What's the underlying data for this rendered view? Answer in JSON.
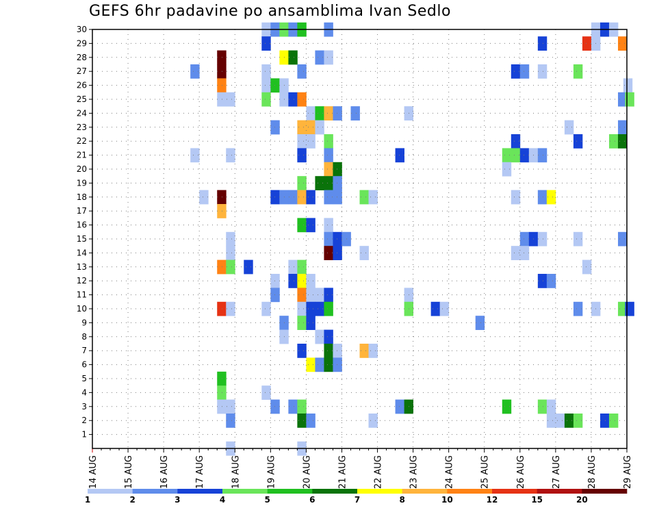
{
  "chart_data": {
    "type": "heatmap",
    "title": "GEFS 6hr padavine po ansamblima Ivan Sedlo",
    "y_ticks": [
      "1",
      "2",
      "3",
      "4",
      "5",
      "6",
      "7",
      "8",
      "9",
      "10",
      "11",
      "12",
      "13",
      "14",
      "15",
      "16",
      "17",
      "18",
      "19",
      "20",
      "21",
      "22",
      "23",
      "24",
      "25",
      "26",
      "27",
      "28",
      "29",
      "30"
    ],
    "y_range": [
      0,
      30
    ],
    "x_ticks": [
      "14 AUG",
      "15 AUG",
      "16 AUG",
      "17 AUG",
      "18 AUG",
      "19 AUG",
      "20 AUG",
      "21 AUG",
      "22 AUG",
      "23 AUG",
      "24 AUG",
      "25 AUG",
      "26 AUG",
      "27 AUG",
      "28 AUG",
      "29 AUG"
    ],
    "x_range_days": [
      0,
      15
    ],
    "time_step_hours": 6,
    "grid": true,
    "colorbar": {
      "labels": [
        "1",
        "2",
        "3",
        "4",
        "5",
        "6",
        "7",
        "8",
        "10",
        "12",
        "15",
        "20"
      ],
      "colors": [
        "#b4c8f4",
        "#5f8ceb",
        "#1642d7",
        "#6ae55a",
        "#20c020",
        "#0a730a",
        "#ffff00",
        "#ffb43c",
        "#ff8214",
        "#e63214",
        "#b01010",
        "#650000"
      ]
    },
    "cells": [
      [
        4.75,
        30,
        "#b4c8f4"
      ],
      [
        5,
        30,
        "#5f8ceb"
      ],
      [
        5.25,
        30,
        "#6ae55a"
      ],
      [
        5.5,
        30,
        "#5f8ceb"
      ],
      [
        5.75,
        30,
        "#20c020"
      ],
      [
        6.5,
        30,
        "#5f8ceb"
      ],
      [
        14,
        30,
        "#b4c8f4"
      ],
      [
        14.25,
        30,
        "#1642d7"
      ],
      [
        14.5,
        30,
        "#b4c8f4"
      ],
      [
        4.75,
        29,
        "#1642d7"
      ],
      [
        12.5,
        29,
        "#1642d7"
      ],
      [
        13.75,
        29,
        "#e63214"
      ],
      [
        14,
        29,
        "#b4c8f4"
      ],
      [
        14.75,
        29,
        "#ff8214"
      ],
      [
        3.5,
        28,
        "#650000"
      ],
      [
        5.25,
        28,
        "#ffff00"
      ],
      [
        5.5,
        28,
        "#0a730a"
      ],
      [
        6.25,
        28,
        "#5f8ceb"
      ],
      [
        6.5,
        28,
        "#b4c8f4"
      ],
      [
        2.75,
        27,
        "#5f8ceb"
      ],
      [
        3.5,
        27,
        "#650000"
      ],
      [
        4.75,
        27,
        "#b4c8f4"
      ],
      [
        5.75,
        27,
        "#5f8ceb"
      ],
      [
        11.75,
        27,
        "#1642d7"
      ],
      [
        12,
        27,
        "#5f8ceb"
      ],
      [
        12.5,
        27,
        "#b4c8f4"
      ],
      [
        13.5,
        27,
        "#6ae55a"
      ],
      [
        3.5,
        26,
        "#ff8214"
      ],
      [
        4.75,
        26,
        "#b4c8f4"
      ],
      [
        5,
        26,
        "#20c020"
      ],
      [
        5.25,
        26,
        "#b4c8f4"
      ],
      [
        14.9,
        26,
        "#b4c8f4"
      ],
      [
        3.5,
        25,
        "#b4c8f4"
      ],
      [
        3.75,
        25,
        "#b4c8f4"
      ],
      [
        4.75,
        25,
        "#6ae55a"
      ],
      [
        5.25,
        25,
        "#b4c8f4"
      ],
      [
        5.5,
        25,
        "#1642d7"
      ],
      [
        5.75,
        25,
        "#ff8214"
      ],
      [
        14.75,
        25,
        "#5f8ceb"
      ],
      [
        14.95,
        25,
        "#6ae55a"
      ],
      [
        6,
        24,
        "#b4c8f4"
      ],
      [
        6.25,
        24,
        "#20c020"
      ],
      [
        6.5,
        24,
        "#ffb43c"
      ],
      [
        6.75,
        24,
        "#5f8ceb"
      ],
      [
        7.25,
        24,
        "#5f8ceb"
      ],
      [
        8.75,
        24,
        "#b4c8f4"
      ],
      [
        5,
        23,
        "#5f8ceb"
      ],
      [
        5.75,
        23,
        "#ffb43c"
      ],
      [
        6,
        23,
        "#ffb43c"
      ],
      [
        6.25,
        23,
        "#b4c8f4"
      ],
      [
        13.25,
        23,
        "#b4c8f4"
      ],
      [
        14.75,
        23,
        "#5f8ceb"
      ],
      [
        5.75,
        22,
        "#b4c8f4"
      ],
      [
        6,
        22,
        "#b4c8f4"
      ],
      [
        6.5,
        22,
        "#6ae55a"
      ],
      [
        11.75,
        22,
        "#1642d7"
      ],
      [
        13.5,
        22,
        "#1642d7"
      ],
      [
        14.5,
        22,
        "#6ae55a"
      ],
      [
        14.75,
        22,
        "#0a730a"
      ],
      [
        2.75,
        21,
        "#b4c8f4"
      ],
      [
        3.75,
        21,
        "#b4c8f4"
      ],
      [
        5.75,
        21,
        "#1642d7"
      ],
      [
        6.5,
        21,
        "#5f8ceb"
      ],
      [
        8.5,
        21,
        "#1642d7"
      ],
      [
        11.5,
        21,
        "#6ae55a"
      ],
      [
        11.75,
        21,
        "#6ae55a"
      ],
      [
        12,
        21,
        "#1642d7"
      ],
      [
        12.25,
        21,
        "#b4c8f4"
      ],
      [
        12.5,
        21,
        "#5f8ceb"
      ],
      [
        6.5,
        20,
        "#ffb43c"
      ],
      [
        6.75,
        20,
        "#0a730a"
      ],
      [
        11.5,
        20,
        "#b4c8f4"
      ],
      [
        5.75,
        19,
        "#6ae55a"
      ],
      [
        6.25,
        19,
        "#0a730a"
      ],
      [
        6.5,
        19,
        "#0a730a"
      ],
      [
        6.75,
        19,
        "#5f8ceb"
      ],
      [
        3,
        18,
        "#b4c8f4"
      ],
      [
        3.5,
        18,
        "#650000"
      ],
      [
        5,
        18,
        "#1642d7"
      ],
      [
        5.25,
        18,
        "#5f8ceb"
      ],
      [
        5.5,
        18,
        "#5f8ceb"
      ],
      [
        5.75,
        18,
        "#ffb43c"
      ],
      [
        6,
        18,
        "#1642d7"
      ],
      [
        6.5,
        18,
        "#5f8ceb"
      ],
      [
        6.75,
        18,
        "#5f8ceb"
      ],
      [
        7.5,
        18,
        "#6ae55a"
      ],
      [
        7.75,
        18,
        "#b4c8f4"
      ],
      [
        11.75,
        18,
        "#b4c8f4"
      ],
      [
        12.5,
        18,
        "#5f8ceb"
      ],
      [
        12.75,
        18,
        "#ffff00"
      ],
      [
        3.5,
        17,
        "#ffb43c"
      ],
      [
        5.75,
        16,
        "#20c020"
      ],
      [
        6,
        16,
        "#1642d7"
      ],
      [
        6.5,
        16,
        "#b4c8f4"
      ],
      [
        3.75,
        15,
        "#b4c8f4"
      ],
      [
        6.5,
        15,
        "#5f8ceb"
      ],
      [
        6.75,
        15,
        "#1642d7"
      ],
      [
        7,
        15,
        "#5f8ceb"
      ],
      [
        12,
        15,
        "#5f8ceb"
      ],
      [
        12.25,
        15,
        "#1642d7"
      ],
      [
        12.5,
        15,
        "#b4c8f4"
      ],
      [
        13.5,
        15,
        "#b4c8f4"
      ],
      [
        14.75,
        15,
        "#5f8ceb"
      ],
      [
        3.75,
        14,
        "#b4c8f4"
      ],
      [
        6.5,
        14,
        "#650000"
      ],
      [
        6.75,
        14,
        "#1642d7"
      ],
      [
        7.5,
        14,
        "#b4c8f4"
      ],
      [
        11.75,
        14,
        "#b4c8f4"
      ],
      [
        12,
        14,
        "#b4c8f4"
      ],
      [
        3.5,
        13,
        "#ff8214"
      ],
      [
        3.75,
        13,
        "#6ae55a"
      ],
      [
        4.25,
        13,
        "#1642d7"
      ],
      [
        5.5,
        13,
        "#b4c8f4"
      ],
      [
        5.75,
        13,
        "#6ae55a"
      ],
      [
        13.75,
        13,
        "#b4c8f4"
      ],
      [
        5,
        12,
        "#b4c8f4"
      ],
      [
        5.5,
        12,
        "#1642d7"
      ],
      [
        5.75,
        12,
        "#ffff00"
      ],
      [
        6,
        12,
        "#b4c8f4"
      ],
      [
        12.5,
        12,
        "#1642d7"
      ],
      [
        12.75,
        12,
        "#5f8ceb"
      ],
      [
        5,
        11,
        "#5f8ceb"
      ],
      [
        5.75,
        11,
        "#ff8214"
      ],
      [
        6,
        11,
        "#b4c8f4"
      ],
      [
        6.25,
        11,
        "#b4c8f4"
      ],
      [
        6.5,
        11,
        "#1642d7"
      ],
      [
        8.75,
        11,
        "#b4c8f4"
      ],
      [
        3.5,
        10,
        "#e63214"
      ],
      [
        3.75,
        10,
        "#b4c8f4"
      ],
      [
        4.75,
        10,
        "#b4c8f4"
      ],
      [
        5.75,
        10,
        "#b4c8f4"
      ],
      [
        6,
        10,
        "#1642d7"
      ],
      [
        6.25,
        10,
        "#1642d7"
      ],
      [
        6.5,
        10,
        "#20c020"
      ],
      [
        8.75,
        10,
        "#6ae55a"
      ],
      [
        9.5,
        10,
        "#1642d7"
      ],
      [
        9.75,
        10,
        "#b4c8f4"
      ],
      [
        13.5,
        10,
        "#5f8ceb"
      ],
      [
        14,
        10,
        "#b4c8f4"
      ],
      [
        14.75,
        10,
        "#6ae55a"
      ],
      [
        14.95,
        10,
        "#1642d7"
      ],
      [
        5.25,
        9,
        "#5f8ceb"
      ],
      [
        5.75,
        9,
        "#6ae55a"
      ],
      [
        6,
        9,
        "#1642d7"
      ],
      [
        10.75,
        9,
        "#5f8ceb"
      ],
      [
        5.25,
        8,
        "#b4c8f4"
      ],
      [
        6.25,
        8,
        "#b4c8f4"
      ],
      [
        6.5,
        8,
        "#1642d7"
      ],
      [
        5.75,
        7,
        "#1642d7"
      ],
      [
        6.5,
        7,
        "#0a730a"
      ],
      [
        6.75,
        7,
        "#b4c8f4"
      ],
      [
        7.5,
        7,
        "#ffb43c"
      ],
      [
        7.75,
        7,
        "#b4c8f4"
      ],
      [
        6,
        6,
        "#ffff00"
      ],
      [
        6.25,
        6,
        "#5f8ceb"
      ],
      [
        6.5,
        6,
        "#0a730a"
      ],
      [
        6.75,
        6,
        "#5f8ceb"
      ],
      [
        3.5,
        5,
        "#20c020"
      ],
      [
        3.5,
        4,
        "#6ae55a"
      ],
      [
        4.75,
        4,
        "#b4c8f4"
      ],
      [
        3.5,
        3,
        "#b4c8f4"
      ],
      [
        3.75,
        3,
        "#b4c8f4"
      ],
      [
        5,
        3,
        "#5f8ceb"
      ],
      [
        5.5,
        3,
        "#5f8ceb"
      ],
      [
        5.75,
        3,
        "#6ae55a"
      ],
      [
        8.5,
        3,
        "#5f8ceb"
      ],
      [
        8.75,
        3,
        "#0a730a"
      ],
      [
        11.5,
        3,
        "#20c020"
      ],
      [
        12.5,
        3,
        "#6ae55a"
      ],
      [
        12.75,
        3,
        "#b4c8f4"
      ],
      [
        3.75,
        2,
        "#5f8ceb"
      ],
      [
        5.75,
        2,
        "#0a730a"
      ],
      [
        6,
        2,
        "#5f8ceb"
      ],
      [
        7.75,
        2,
        "#b4c8f4"
      ],
      [
        12.75,
        2,
        "#b4c8f4"
      ],
      [
        13,
        2,
        "#b4c8f4"
      ],
      [
        13.25,
        2,
        "#0a730a"
      ],
      [
        13.5,
        2,
        "#6ae55a"
      ],
      [
        14.25,
        2,
        "#1642d7"
      ],
      [
        14.5,
        2,
        "#6ae55a"
      ],
      [
        3.75,
        0,
        "#b4c8f4"
      ],
      [
        5.75,
        0,
        "#b4c8f4"
      ]
    ]
  }
}
